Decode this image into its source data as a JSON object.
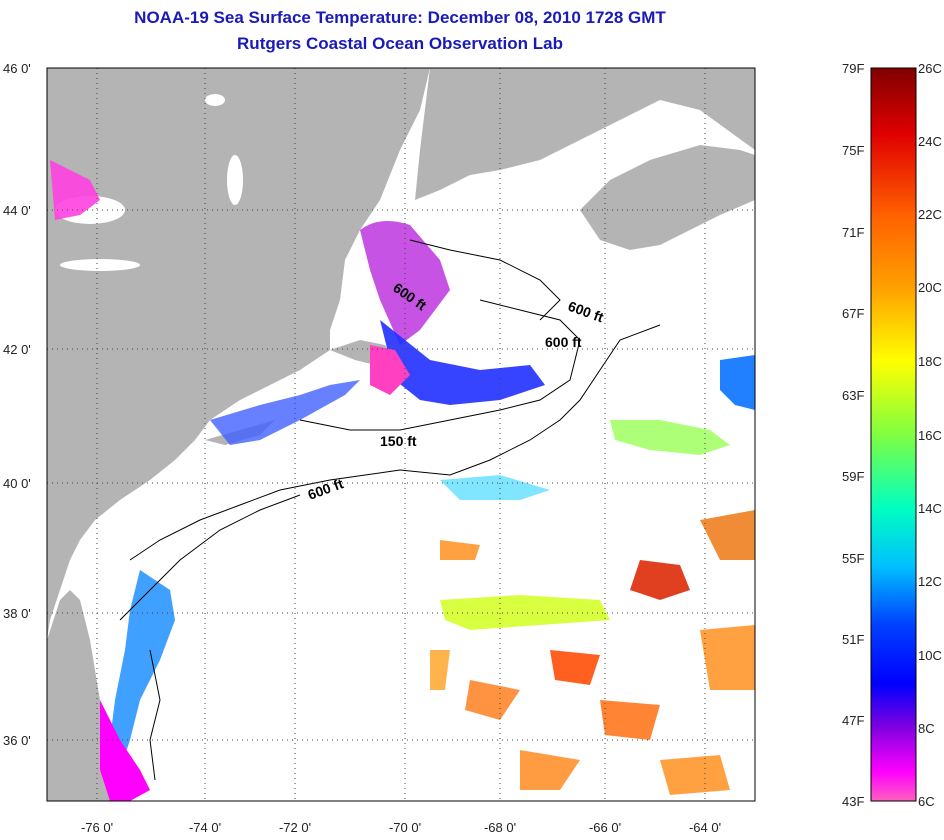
{
  "title": {
    "line1": "NOAA-19 Sea Surface Temperature:  December 08, 2010 1728 GMT",
    "line2": "Rutgers Coastal Ocean Observation Lab"
  },
  "map": {
    "lon_labels": [
      "-76 0'",
      "-74 0'",
      "-72 0'",
      "-70 0'",
      "-68 0'",
      "-66 0'",
      "-64 0'"
    ],
    "lat_labels": [
      "46 0'",
      "44 0'",
      "42 0'",
      "40 0'",
      "38 0'",
      "36 0'"
    ],
    "contour_labels": [
      "600 ft",
      "600 ft",
      "600 ft",
      "150 ft",
      "600 ft"
    ],
    "colors": {
      "land": "#b4b4b4",
      "ocean": "#ffffff",
      "grid": "#555555"
    }
  },
  "colorbar": {
    "fahrenheit_labels": [
      "79F",
      "75F",
      "71F",
      "67F",
      "63F",
      "59F",
      "55F",
      "51F",
      "47F",
      "43F"
    ],
    "celsius_labels": [
      "26C",
      "24C",
      "22C",
      "20C",
      "18C",
      "16C",
      "14C",
      "12C",
      "10C",
      "8C",
      "6C"
    ],
    "gradient_colors": [
      "#800000",
      "#e00000",
      "#ff6000",
      "#ffa000",
      "#ffff00",
      "#80ff40",
      "#00ffc0",
      "#00c0ff",
      "#0040ff",
      "#0000ff",
      "#8000e0",
      "#ff00ff",
      "#ff60c0"
    ]
  }
}
